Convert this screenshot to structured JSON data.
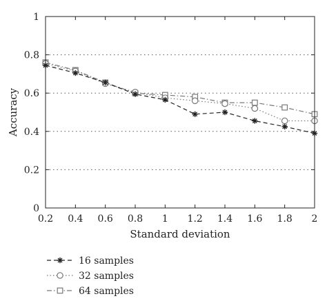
{
  "chart_data": {
    "type": "line",
    "title": "",
    "xlabel": "Standard deviation",
    "ylabel": "Accuracy",
    "xlim": [
      0.2,
      2
    ],
    "ylim": [
      0,
      1
    ],
    "x_ticks": [
      "0.2",
      "0.4",
      "0.6",
      "0.8",
      "1",
      "1.2",
      "1.4",
      "1.6",
      "1.8",
      "2"
    ],
    "y_ticks": [
      "0",
      "0.2",
      "0.4",
      "0.6",
      "0.8",
      "1"
    ],
    "grid": "dotted horizontal",
    "legend_position": "below-left",
    "x": [
      0.2,
      0.4,
      0.6,
      0.8,
      1.0,
      1.2,
      1.4,
      1.6,
      1.8,
      2.0
    ],
    "series": [
      {
        "name": "16 samples",
        "marker": "star",
        "dash": "dashed",
        "color": "#222222",
        "values": [
          0.745,
          0.705,
          0.655,
          0.595,
          0.565,
          0.49,
          0.5,
          0.455,
          0.425,
          0.39
        ]
      },
      {
        "name": "32 samples",
        "marker": "circle",
        "dash": "dotted",
        "color": "#777777",
        "values": [
          0.755,
          0.715,
          0.65,
          0.605,
          0.575,
          0.56,
          0.545,
          0.52,
          0.455,
          0.455
        ]
      },
      {
        "name": "64 samples",
        "marker": "square",
        "dash": "dashdot",
        "color": "#777777",
        "values": [
          0.76,
          0.72,
          0.655,
          0.6,
          0.59,
          0.58,
          0.55,
          0.55,
          0.525,
          0.49
        ]
      }
    ]
  }
}
